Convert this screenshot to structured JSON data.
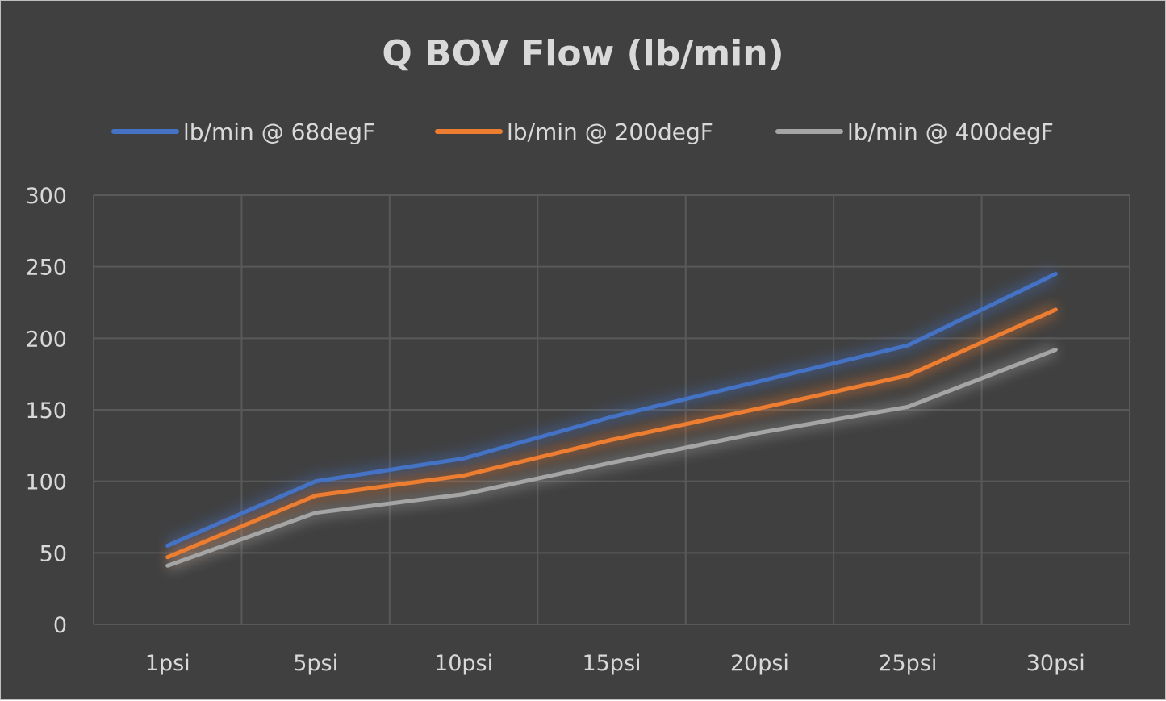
{
  "chart_data": {
    "type": "line",
    "title": "Q BOV Flow (lb/min)",
    "xlabel": "",
    "ylabel": "",
    "categories": [
      "1psi",
      "5psi",
      "10psi",
      "15psi",
      "20psi",
      "25psi",
      "30psi"
    ],
    "ylim": [
      0,
      300
    ],
    "yticks": [
      0,
      50,
      100,
      150,
      200,
      250,
      300
    ],
    "grid": true,
    "legend_position": "top",
    "series": [
      {
        "name": "lb/min @ 68degF",
        "color": "#4472c4",
        "values": [
          55,
          100,
          116,
          145,
          170,
          195,
          245
        ]
      },
      {
        "name": "lb/min @ 200degF",
        "color": "#ed7d31",
        "values": [
          47,
          90,
          104,
          129,
          151,
          174,
          220
        ]
      },
      {
        "name": "lb/min @ 400degF",
        "color": "#a5a5a5",
        "values": [
          41,
          78,
          91,
          113,
          134,
          152,
          192
        ]
      }
    ],
    "background": "#404040"
  }
}
